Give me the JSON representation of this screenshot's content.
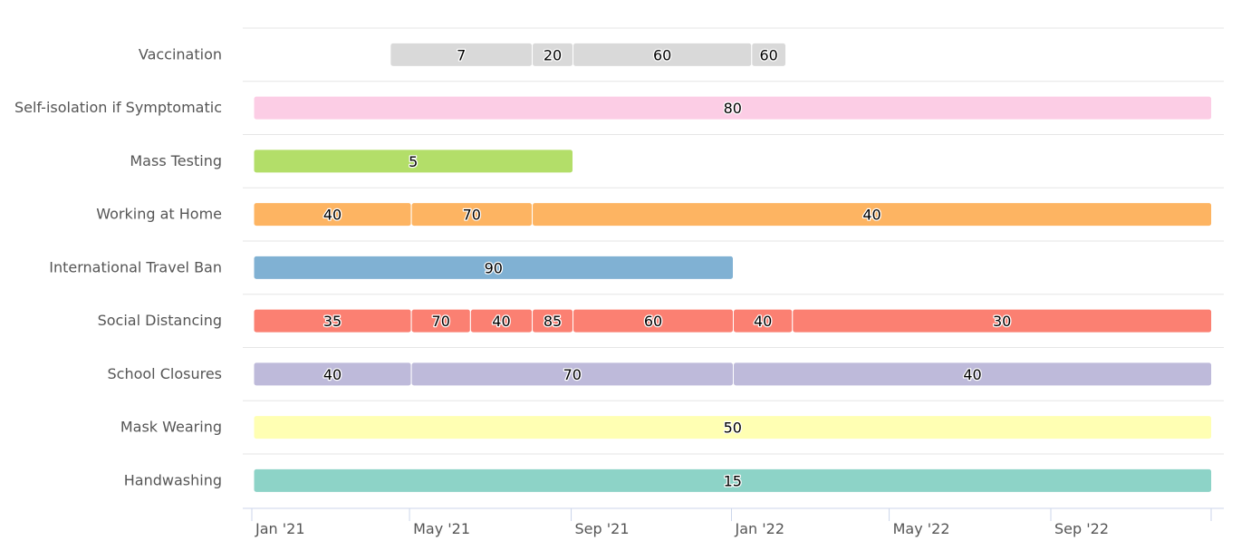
{
  "chart_data": {
    "type": "gantt",
    "title": "",
    "xlabel": "",
    "ylabel": "",
    "x_range": [
      "2021-01-01",
      "2023-01-01"
    ],
    "x_ticks": [
      {
        "date": "2021-01-01",
        "label": "Jan '21"
      },
      {
        "date": "2021-05-01",
        "label": "May '21"
      },
      {
        "date": "2021-09-01",
        "label": "Sep '21"
      },
      {
        "date": "2022-01-01",
        "label": "Jan '22"
      },
      {
        "date": "2022-05-01",
        "label": "May '22"
      },
      {
        "date": "2022-09-01",
        "label": "Sep '22"
      }
    ],
    "grid": true,
    "categories": [
      {
        "name": "Vaccination",
        "color": "#d9d9d9",
        "segments": [
          {
            "start": "2021-04-15",
            "end": "2021-08-01",
            "value": 7
          },
          {
            "start": "2021-08-01",
            "end": "2021-09-01",
            "value": 20
          },
          {
            "start": "2021-09-01",
            "end": "2022-01-15",
            "value": 60
          },
          {
            "start": "2022-01-15",
            "end": "2022-02-10",
            "value": 60
          }
        ]
      },
      {
        "name": "Self-isolation if Symptomatic",
        "color": "#fccde5",
        "segments": [
          {
            "start": "2021-01-01",
            "end": "2022-12-31",
            "value": 80
          }
        ]
      },
      {
        "name": "Mass Testing",
        "color": "#b3de69",
        "segments": [
          {
            "start": "2021-01-01",
            "end": "2021-09-01",
            "value": 5
          }
        ]
      },
      {
        "name": "Working at Home",
        "color": "#fdb462",
        "segments": [
          {
            "start": "2021-01-01",
            "end": "2021-05-01",
            "value": 40
          },
          {
            "start": "2021-05-01",
            "end": "2021-08-01",
            "value": 70
          },
          {
            "start": "2021-08-01",
            "end": "2022-12-31",
            "value": 40
          }
        ]
      },
      {
        "name": "International Travel Ban",
        "color": "#80b1d3",
        "segments": [
          {
            "start": "2021-01-01",
            "end": "2022-01-01",
            "value": 90
          }
        ]
      },
      {
        "name": "Social Distancing",
        "color": "#fb8072",
        "segments": [
          {
            "start": "2021-01-01",
            "end": "2021-05-01",
            "value": 35
          },
          {
            "start": "2021-05-01",
            "end": "2021-06-15",
            "value": 70
          },
          {
            "start": "2021-06-15",
            "end": "2021-08-01",
            "value": 40
          },
          {
            "start": "2021-08-01",
            "end": "2021-09-01",
            "value": 85
          },
          {
            "start": "2021-09-01",
            "end": "2022-01-01",
            "value": 60
          },
          {
            "start": "2022-01-01",
            "end": "2022-02-15",
            "value": 40
          },
          {
            "start": "2022-02-15",
            "end": "2022-12-31",
            "value": 30
          }
        ]
      },
      {
        "name": "School Closures",
        "color": "#bebada",
        "segments": [
          {
            "start": "2021-01-01",
            "end": "2021-05-01",
            "value": 40
          },
          {
            "start": "2021-05-01",
            "end": "2022-01-01",
            "value": 70
          },
          {
            "start": "2022-01-01",
            "end": "2022-12-31",
            "value": 40
          }
        ]
      },
      {
        "name": "Mask Wearing",
        "color": "#ffffb3",
        "segments": [
          {
            "start": "2021-01-01",
            "end": "2022-12-31",
            "value": 50
          }
        ]
      },
      {
        "name": "Handwashing",
        "color": "#8dd3c7",
        "segments": [
          {
            "start": "2021-01-01",
            "end": "2022-12-31",
            "value": 15
          }
        ]
      }
    ]
  }
}
